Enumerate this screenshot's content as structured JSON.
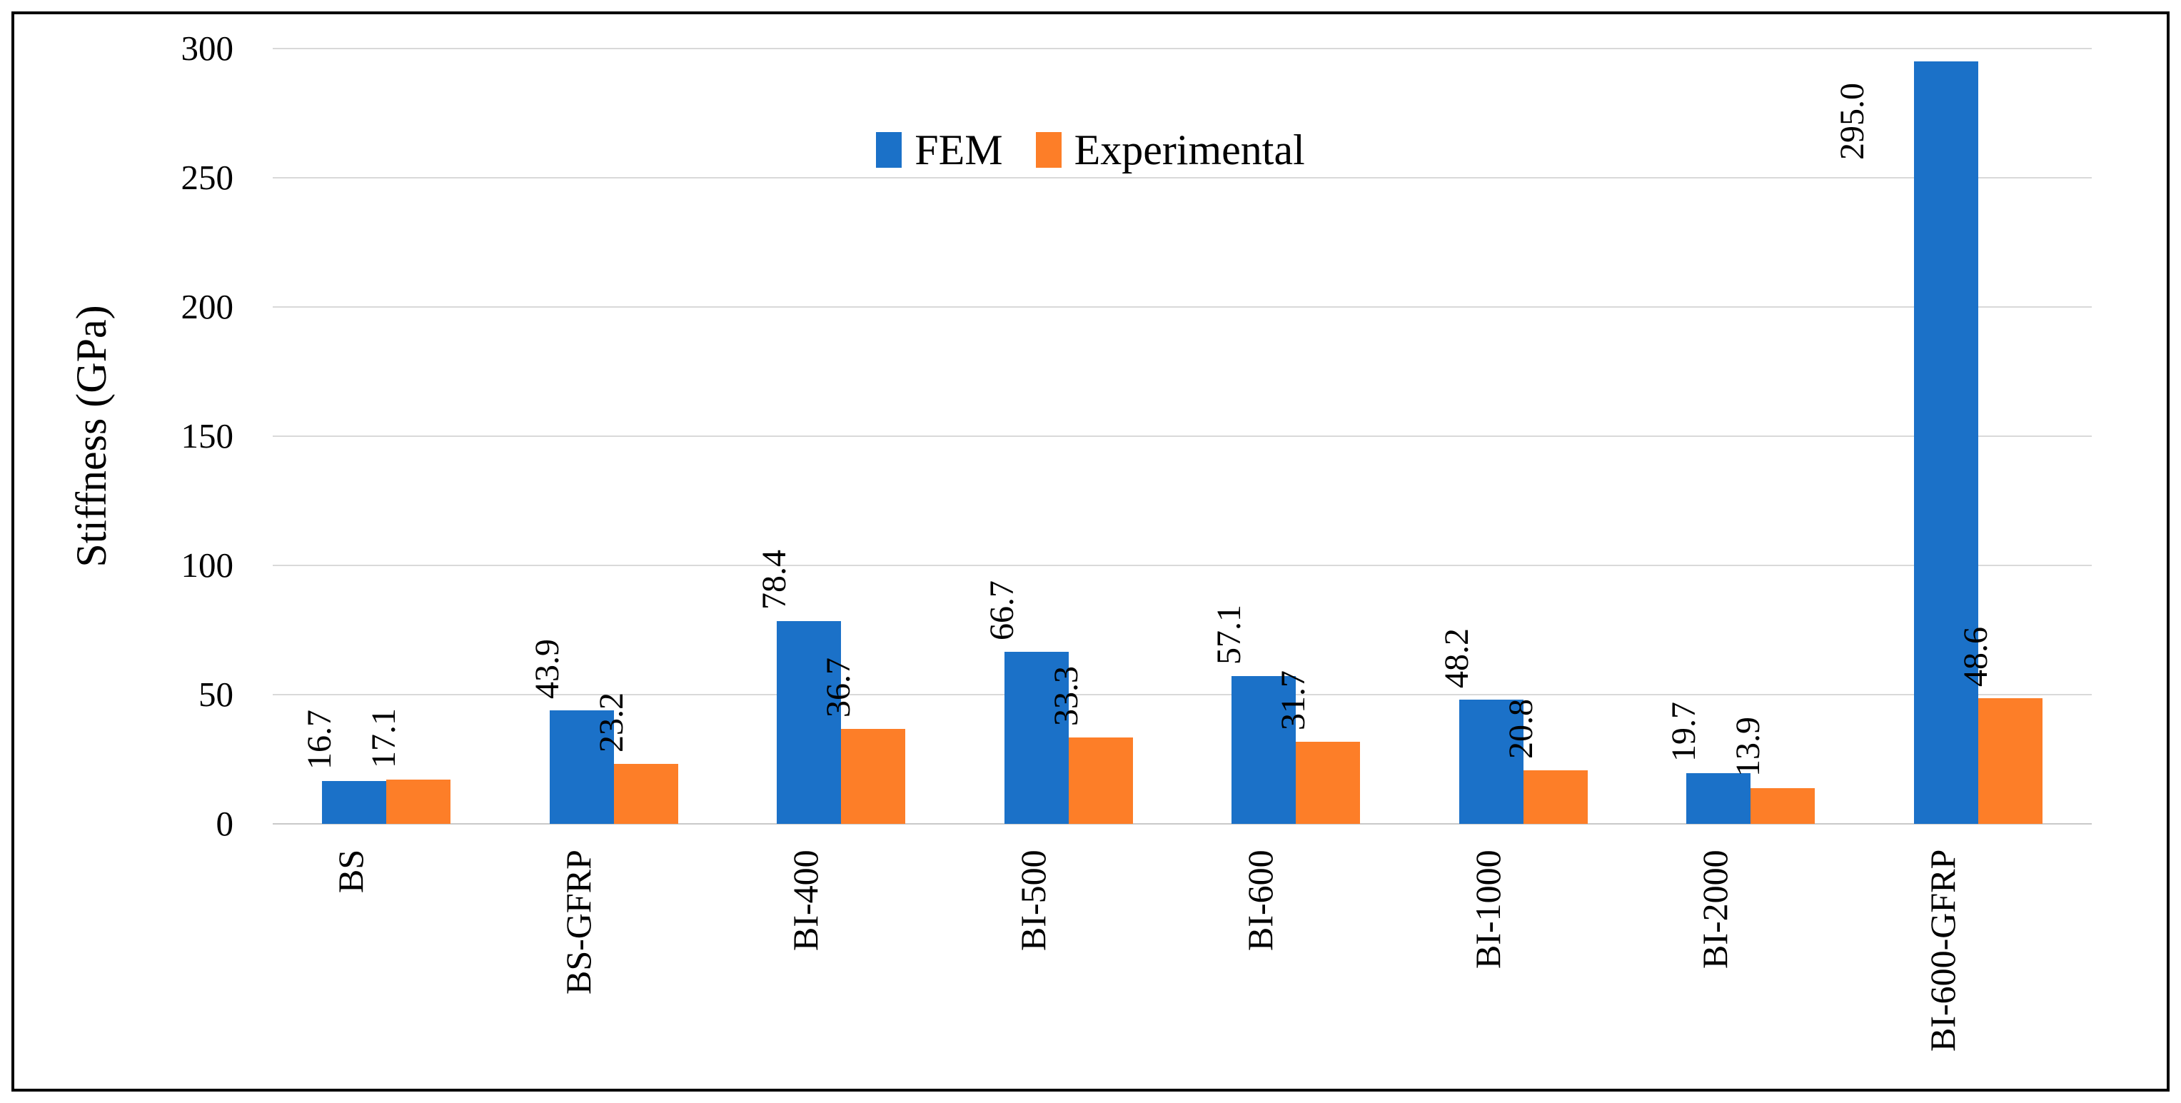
{
  "chart_data": {
    "type": "bar",
    "title": "",
    "categories": [
      "BS",
      "BS-GFRP",
      "BI-400",
      "BI-500",
      "BI-600",
      "BI-1000",
      "BI-2000",
      "BI-600-GFRP"
    ],
    "series": [
      {
        "name": "FEM",
        "color": "#1b71c8",
        "values": [
          16.7,
          43.9,
          78.4,
          66.7,
          57.1,
          48.2,
          19.7,
          295.0
        ],
        "labels": [
          "16.7",
          "43.9",
          "78.4",
          "66.7",
          "57.1",
          "48.2",
          "19.7",
          "295.0"
        ]
      },
      {
        "name": "Experimental",
        "color": "#fd7e28",
        "values": [
          17.1,
          23.2,
          36.7,
          33.3,
          31.7,
          20.8,
          13.9,
          48.6
        ],
        "labels": [
          "17.1",
          "23.2",
          "36.7",
          "33.3",
          "31.7",
          "20.8",
          "13.9",
          "48.6"
        ]
      }
    ],
    "xlabel": "",
    "ylabel": "Stiffness (GPa)",
    "ylim": [
      0,
      300
    ],
    "yticks": [
      0,
      50,
      100,
      150,
      200,
      250,
      300
    ],
    "grid": true,
    "legend_position": "top-center",
    "value_label_rotation": 90,
    "category_label_rotation": 90
  },
  "colors": {
    "gridline": "#d9d9d9",
    "axis_baseline": "#c9c9c9",
    "text": "#000000",
    "frame_border": "#000000",
    "background": "#ffffff"
  }
}
